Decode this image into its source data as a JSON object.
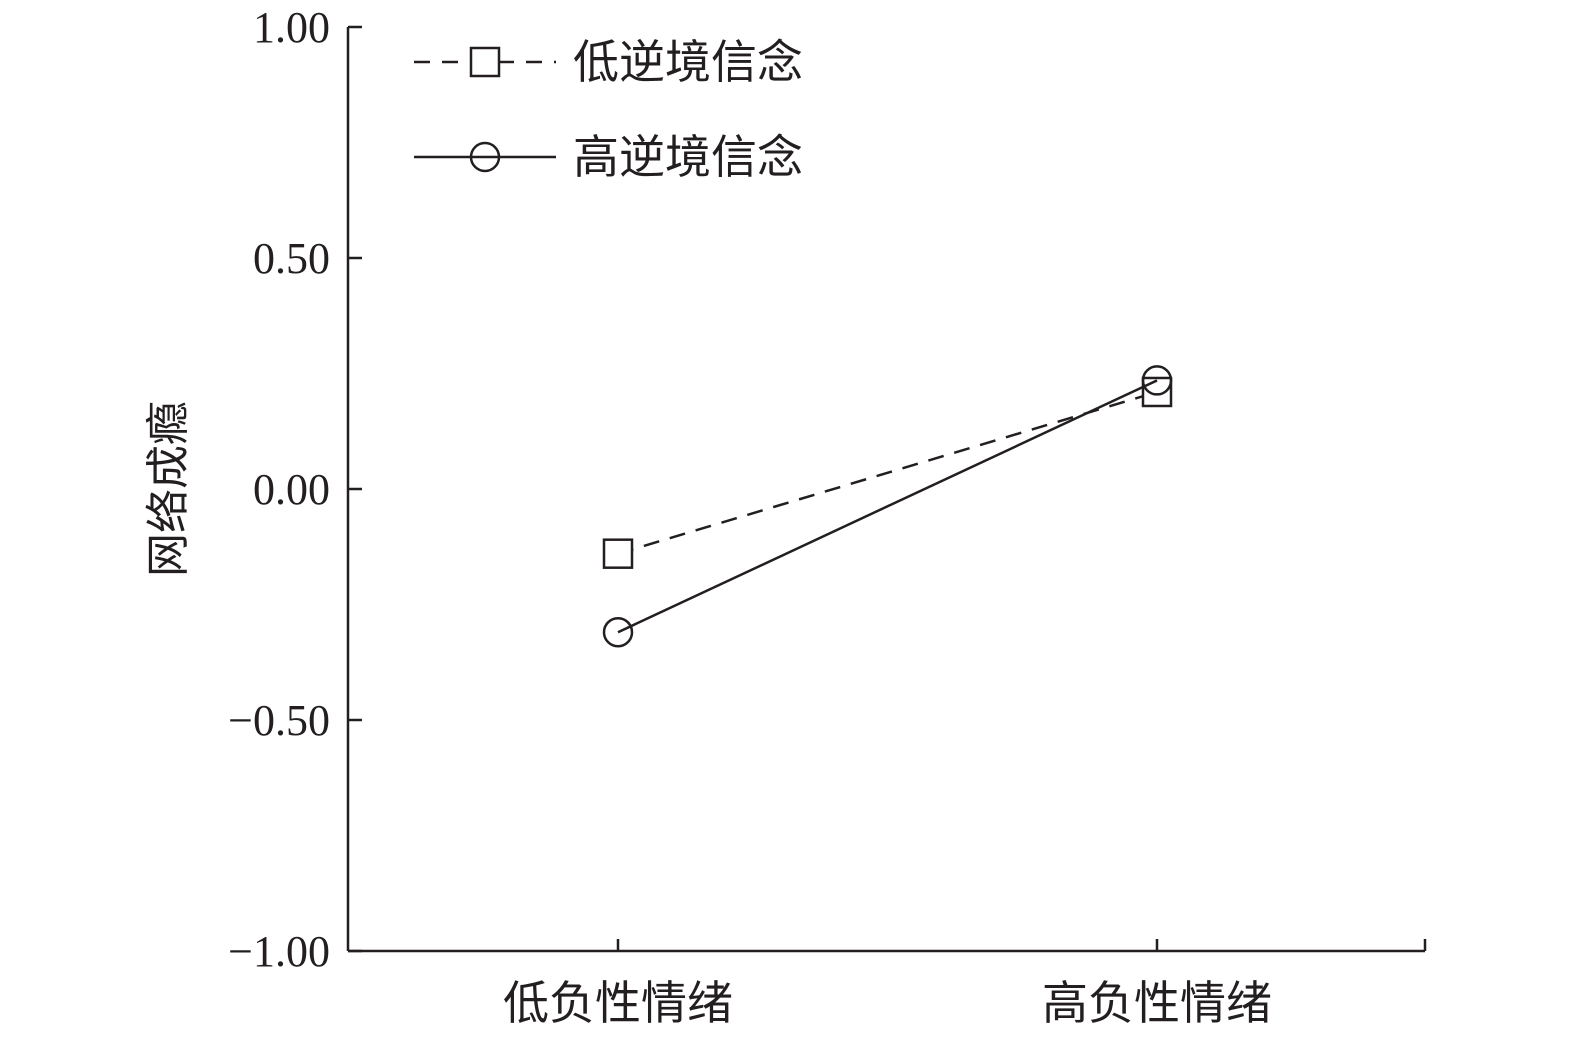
{
  "chart_data": {
    "type": "line",
    "title": "",
    "xlabel": "",
    "ylabel": "网络成瘾",
    "categories": [
      "低负性情绪",
      "高负性情绪"
    ],
    "ylim": [
      -1.0,
      1.0
    ],
    "yticks": [
      "1.00",
      "0.50",
      "0.00",
      "−0.50",
      "−1.00"
    ],
    "ytick_values": [
      1.0,
      0.5,
      0.0,
      -0.5,
      -1.0
    ],
    "grid": false,
    "legend_position": "top-left",
    "series": [
      {
        "name": "低逆境信念",
        "values": [
          -0.14,
          0.21
        ],
        "line_style": "dashed",
        "marker": "square",
        "color": "#231f20"
      },
      {
        "name": "高逆境信念",
        "values": [
          -0.31,
          0.235
        ],
        "line_style": "solid",
        "marker": "circle",
        "color": "#231f20"
      }
    ]
  }
}
